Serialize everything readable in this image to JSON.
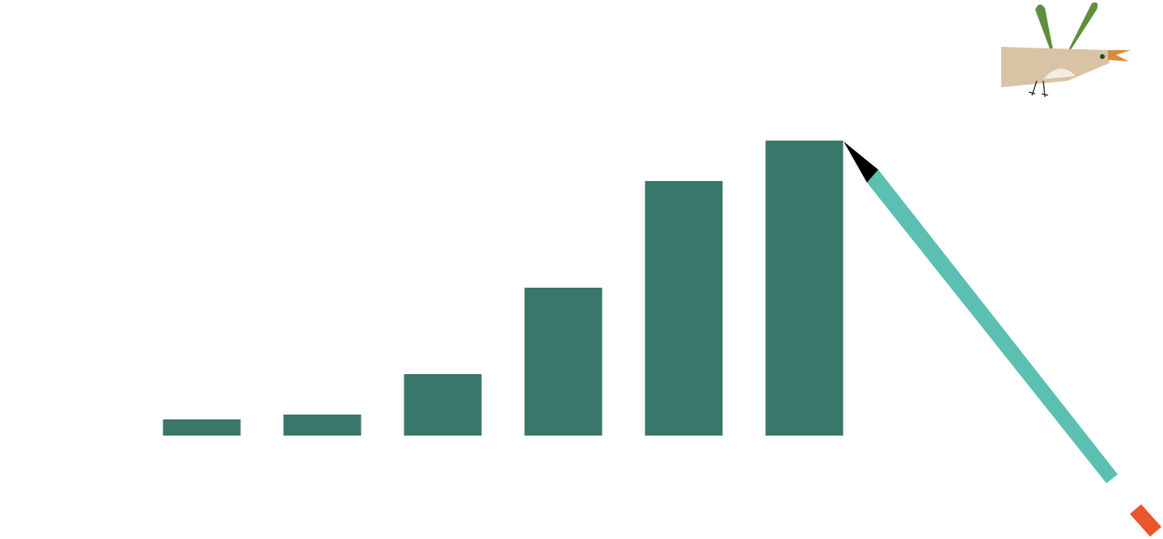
{
  "chart_data": {
    "type": "bar",
    "categories": [
      null,
      null,
      null,
      null,
      null,
      null
    ],
    "values": [
      20,
      26,
      76,
      183,
      315,
      365
    ],
    "color": "#387769",
    "ylim": [
      0,
      539
    ]
  }
}
